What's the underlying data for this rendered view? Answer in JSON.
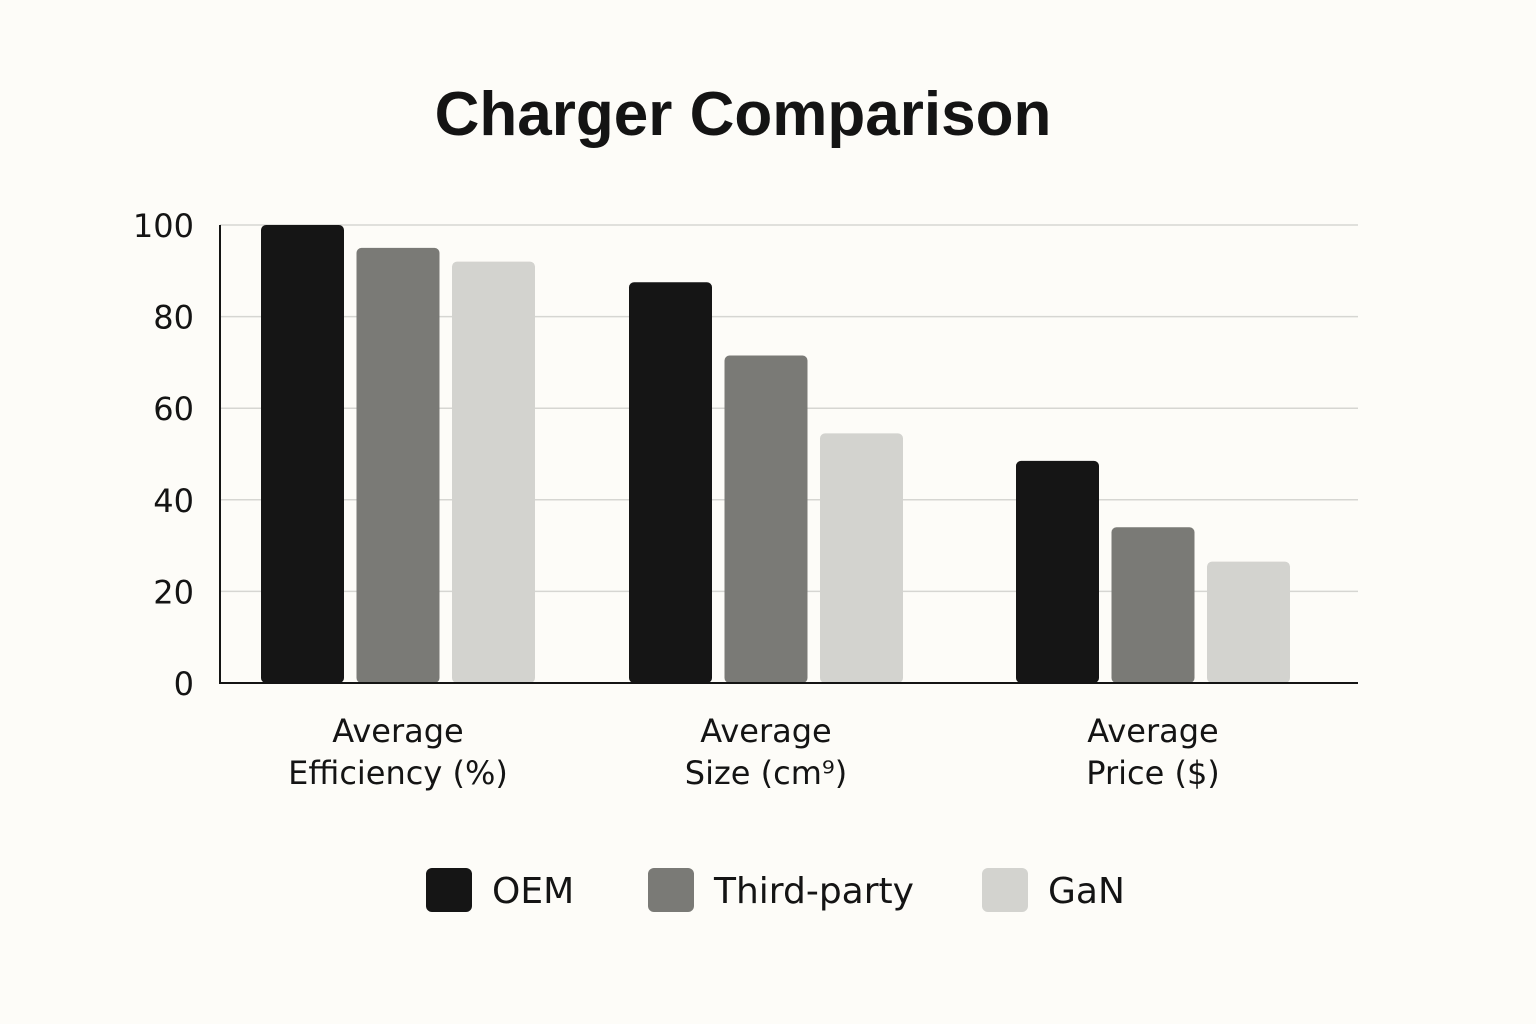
{
  "chart_data": {
    "type": "bar",
    "title": "Charger Comparison",
    "categories": [
      [
        "Average",
        "Efficiency (%)"
      ],
      [
        "Average",
        "Size (cm⁹)"
      ],
      [
        "Average",
        "Price ($)"
      ]
    ],
    "series": [
      {
        "name": "OEM",
        "color": "#151515",
        "values": [
          100,
          87.5,
          48.5
        ]
      },
      {
        "name": "Third-party",
        "color": "#7a7a76",
        "values": [
          95,
          71.5,
          34
        ]
      },
      {
        "name": "GaN",
        "color": "#d3d3cf",
        "values": [
          92,
          54.5,
          26.5
        ]
      }
    ],
    "yticks": [
      "0",
      "20",
      "40",
      "60",
      "80",
      "100"
    ],
    "ylim": [
      0,
      100
    ],
    "grid": true,
    "legend": "bottom",
    "xlabel": "",
    "ylabel": ""
  }
}
